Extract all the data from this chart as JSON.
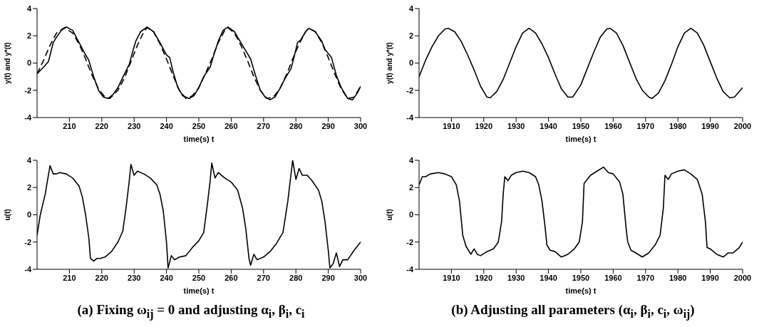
{
  "chart_data": [
    {
      "type": "line",
      "xlabel": "time(s) t",
      "ylabel": "y(t) and y*(t)",
      "xlim": [
        200,
        300
      ],
      "ylim": [
        -4,
        4
      ],
      "xticks": [
        210,
        220,
        230,
        240,
        250,
        260,
        270,
        280,
        290,
        300
      ],
      "yticks": [
        -4,
        -2,
        0,
        2,
        4
      ],
      "marker": "none",
      "series": [
        {
          "color": "#000000",
          "line_style": "solid",
          "x": [
            200,
            202,
            203.5,
            205,
            206,
            207.5,
            209,
            211,
            213,
            215,
            216,
            217.5,
            219,
            220.5,
            222,
            223.5,
            225,
            227,
            228.5,
            229.5,
            230.5,
            232,
            234,
            236,
            238,
            240,
            241,
            242,
            243.5,
            245,
            247,
            248.5,
            250,
            251.5,
            253.5,
            254.5,
            256,
            257.5,
            259,
            261,
            263,
            265,
            266,
            267.5,
            269,
            270.5,
            272,
            273.5,
            275,
            276.5,
            278.5,
            279.5,
            280.5,
            281.5,
            283,
            284,
            286,
            288,
            289,
            291,
            292.5,
            294,
            296,
            297.5,
            299,
            300
          ],
          "values": [
            -0.8,
            -0.3,
            0.1,
            1.5,
            1.9,
            2.4,
            2.65,
            2.4,
            1.5,
            0.6,
            0.2,
            -1.0,
            -2.0,
            -2.5,
            -2.6,
            -2.3,
            -1.8,
            -0.8,
            -0.1,
            0.8,
            1.6,
            2.3,
            2.65,
            2.3,
            1.5,
            0.6,
            0.4,
            -0.6,
            -1.8,
            -2.4,
            -2.6,
            -2.4,
            -1.8,
            -1.0,
            -0.3,
            0.5,
            1.6,
            2.4,
            2.65,
            2.3,
            1.5,
            0.7,
            0.3,
            -0.9,
            -2.0,
            -2.5,
            -2.7,
            -2.5,
            -1.9,
            -1.2,
            -0.4,
            0.5,
            1.5,
            1.7,
            2.3,
            2.55,
            2.3,
            1.6,
            1.0,
            0.4,
            -0.9,
            -1.8,
            -2.6,
            -2.7,
            -2.2,
            -1.7
          ]
        },
        {
          "color": "#000000",
          "line_style": "dashed",
          "x": [
            200,
            202,
            204,
            206,
            208.5,
            211,
            213,
            215,
            217,
            219,
            221,
            222.5,
            225,
            227,
            229,
            231,
            233,
            234,
            236,
            238,
            240,
            242,
            244,
            246,
            248,
            250,
            252,
            254,
            256,
            258,
            259,
            261,
            263,
            265,
            267,
            269,
            271,
            273,
            275,
            277,
            279,
            281,
            283,
            284,
            286,
            288,
            290,
            292,
            294,
            296,
            298,
            300
          ],
          "values": [
            -0.8,
            0.2,
            1.3,
            2.2,
            2.6,
            2.2,
            1.4,
            0.3,
            -0.9,
            -1.9,
            -2.5,
            -2.6,
            -2.0,
            -1.1,
            0.1,
            1.3,
            2.3,
            2.6,
            2.3,
            1.4,
            0.3,
            -0.9,
            -2.0,
            -2.6,
            -2.4,
            -1.8,
            -0.8,
            0.3,
            1.5,
            2.4,
            2.6,
            2.2,
            1.3,
            0.2,
            -1.0,
            -2.0,
            -2.6,
            -2.5,
            -1.9,
            -0.9,
            0.3,
            1.4,
            2.3,
            2.55,
            2.3,
            1.5,
            0.4,
            -0.8,
            -1.9,
            -2.6,
            -2.5,
            -1.7
          ]
        }
      ]
    },
    {
      "type": "line",
      "xlabel": "time(s) t",
      "ylabel": "y(t) and y*(t)",
      "xlim": [
        1900,
        2000
      ],
      "ylim": [
        -4,
        4
      ],
      "xticks": [
        1910,
        1920,
        1930,
        1940,
        1950,
        1960,
        1970,
        1980,
        1990,
        2000
      ],
      "yticks": [
        -4,
        -2,
        0,
        2,
        4
      ],
      "marker": "none",
      "series": [
        {
          "color": "#000000",
          "line_style": "solid",
          "x": [
            1900,
            1902,
            1904,
            1906,
            1908,
            1909,
            1911,
            1913,
            1915,
            1917,
            1919,
            1921,
            1922,
            1924,
            1926,
            1928,
            1930,
            1932,
            1934,
            1936,
            1938,
            1940,
            1942,
            1944,
            1946,
            1947.5,
            1950,
            1952,
            1954,
            1956,
            1958,
            1959,
            1961,
            1963,
            1965,
            1967,
            1969,
            1971,
            1972,
            1974,
            1976,
            1978,
            1980,
            1982,
            1984,
            1986,
            1988,
            1990,
            1992,
            1994,
            1996,
            1997.5,
            2000
          ],
          "values": [
            -1.0,
            0.2,
            1.2,
            2.0,
            2.5,
            2.55,
            2.3,
            1.6,
            0.6,
            -0.5,
            -1.7,
            -2.5,
            -2.55,
            -2.1,
            -1.2,
            0.0,
            1.2,
            2.2,
            2.55,
            2.2,
            1.4,
            0.4,
            -0.8,
            -1.9,
            -2.5,
            -2.5,
            -1.6,
            -0.4,
            0.8,
            1.9,
            2.5,
            2.55,
            2.2,
            1.3,
            0.1,
            -1.1,
            -2.0,
            -2.5,
            -2.6,
            -2.2,
            -1.3,
            -0.1,
            1.2,
            2.2,
            2.55,
            2.2,
            1.3,
            0.1,
            -1.1,
            -2.1,
            -2.55,
            -2.5,
            -1.8
          ]
        }
      ]
    },
    {
      "type": "line",
      "xlabel": "time(s) t",
      "ylabel": "u(t)",
      "xlim": [
        200,
        300
      ],
      "ylim": [
        -4,
        4
      ],
      "xticks": [
        210,
        220,
        230,
        240,
        250,
        260,
        270,
        280,
        290,
        300
      ],
      "yticks": [
        -4,
        -2,
        0,
        2,
        4
      ],
      "marker": "none",
      "annotations": [
        "(a) Fixing ω$_{ij}$ = 0 and adjusting α$_{i}$, β$_{i}$, c$_{i}$"
      ],
      "series": [
        {
          "color": "#000000",
          "line_style": "solid",
          "x": [
            200,
            201,
            202.5,
            204,
            205,
            206,
            207,
            209,
            211,
            213,
            214,
            215,
            216,
            216.5,
            217.5,
            218.5,
            219.5,
            221,
            223,
            225,
            226.5,
            227.5,
            228.5,
            229,
            230,
            231,
            233,
            235,
            237,
            238,
            239,
            240,
            240.5,
            241.5,
            242.5,
            244,
            246,
            248,
            250,
            251.5,
            252.5,
            253.5,
            254,
            255,
            256,
            258,
            260,
            262,
            263.5,
            264.5,
            265.5,
            266,
            267,
            268,
            270,
            272,
            274,
            276,
            277.5,
            279,
            280,
            281,
            282,
            283.5,
            285,
            287,
            288,
            289,
            290,
            290.5,
            291.5,
            292.5,
            293.5,
            294.5,
            296,
            298,
            300
          ],
          "values": [
            -1.5,
            0.0,
            1.5,
            3.6,
            3.0,
            3.0,
            3.1,
            3.0,
            2.7,
            2.1,
            1.3,
            0.0,
            -1.7,
            -3.2,
            -3.4,
            -3.2,
            -3.2,
            -3.1,
            -2.7,
            -2.0,
            -1.2,
            0.5,
            2.5,
            3.7,
            2.9,
            3.2,
            3.0,
            2.7,
            2.2,
            1.5,
            0.3,
            -2.0,
            -3.9,
            -3.0,
            -3.3,
            -3.1,
            -3.0,
            -2.4,
            -1.9,
            -1.3,
            0.5,
            2.5,
            3.8,
            2.7,
            3.1,
            2.7,
            2.4,
            1.8,
            0.5,
            -1.0,
            -3.2,
            -3.7,
            -2.9,
            -3.3,
            -3.1,
            -2.7,
            -2.1,
            -1.3,
            1.0,
            4.0,
            2.6,
            3.4,
            2.9,
            2.9,
            2.5,
            1.8,
            1.0,
            -0.5,
            -2.6,
            -3.9,
            -3.6,
            -2.8,
            -3.8,
            -3.3,
            -3.3,
            -2.6,
            -2.0
          ]
        }
      ]
    },
    {
      "type": "line",
      "xlabel": "time(s) t",
      "ylabel": "u(t)",
      "xlim": [
        1900,
        2000
      ],
      "ylim": [
        -4,
        4
      ],
      "xticks": [
        1910,
        1920,
        1930,
        1940,
        1950,
        1960,
        1970,
        1980,
        1990,
        2000
      ],
      "yticks": [
        -4,
        -2,
        0,
        2,
        4
      ],
      "marker": "none",
      "annotations": [
        "(b) Adjusting all parameters (α$_{i}$, β$_{i}$, c$_{i}$, ω$_{ij}$)"
      ],
      "series": [
        {
          "color": "#000000",
          "line_style": "solid",
          "x": [
            1900,
            1901,
            1902,
            1903.5,
            1906,
            1908,
            1910,
            1911.5,
            1912.5,
            1913.5,
            1914.5,
            1916,
            1917,
            1918,
            1919,
            1921,
            1923,
            1924.5,
            1925.5,
            1926,
            1926.5,
            1927.5,
            1928.5,
            1930,
            1932,
            1934,
            1936,
            1937,
            1938,
            1939,
            1939.5,
            1940.5,
            1942,
            1944,
            1946,
            1948,
            1949.5,
            1950.5,
            1951,
            1952,
            1953,
            1955,
            1957,
            1958.5,
            1960,
            1962,
            1963,
            1964,
            1964.5,
            1965.5,
            1967,
            1969,
            1971,
            1973,
            1974.5,
            1975.5,
            1976,
            1977,
            1978,
            1980,
            1982,
            1984,
            1986,
            1987.5,
            1988.5,
            1989,
            1990,
            1992,
            1994,
            1995.5,
            1997,
            1999,
            2000
          ],
          "values": [
            2.2,
            2.8,
            2.8,
            3.0,
            3.1,
            3.0,
            2.8,
            2.2,
            1.0,
            -1.5,
            -2.3,
            -2.9,
            -2.5,
            -2.9,
            -3.0,
            -2.7,
            -2.5,
            -2.0,
            -0.5,
            1.5,
            2.8,
            2.5,
            2.9,
            3.1,
            3.2,
            3.1,
            2.8,
            2.2,
            1.0,
            -1.0,
            -2.2,
            -2.6,
            -2.7,
            -3.1,
            -2.9,
            -2.5,
            -2.0,
            -0.5,
            2.3,
            2.6,
            2.9,
            3.2,
            3.5,
            3.1,
            3.0,
            2.4,
            1.5,
            -1.0,
            -2.0,
            -2.6,
            -2.8,
            -3.1,
            -2.8,
            -2.2,
            -1.5,
            0.5,
            2.9,
            2.6,
            3.0,
            3.2,
            3.3,
            3.0,
            2.6,
            1.5,
            -0.5,
            -2.4,
            -2.5,
            -2.9,
            -3.1,
            -2.8,
            -2.8,
            -2.4,
            -2.0
          ]
        }
      ]
    }
  ]
}
